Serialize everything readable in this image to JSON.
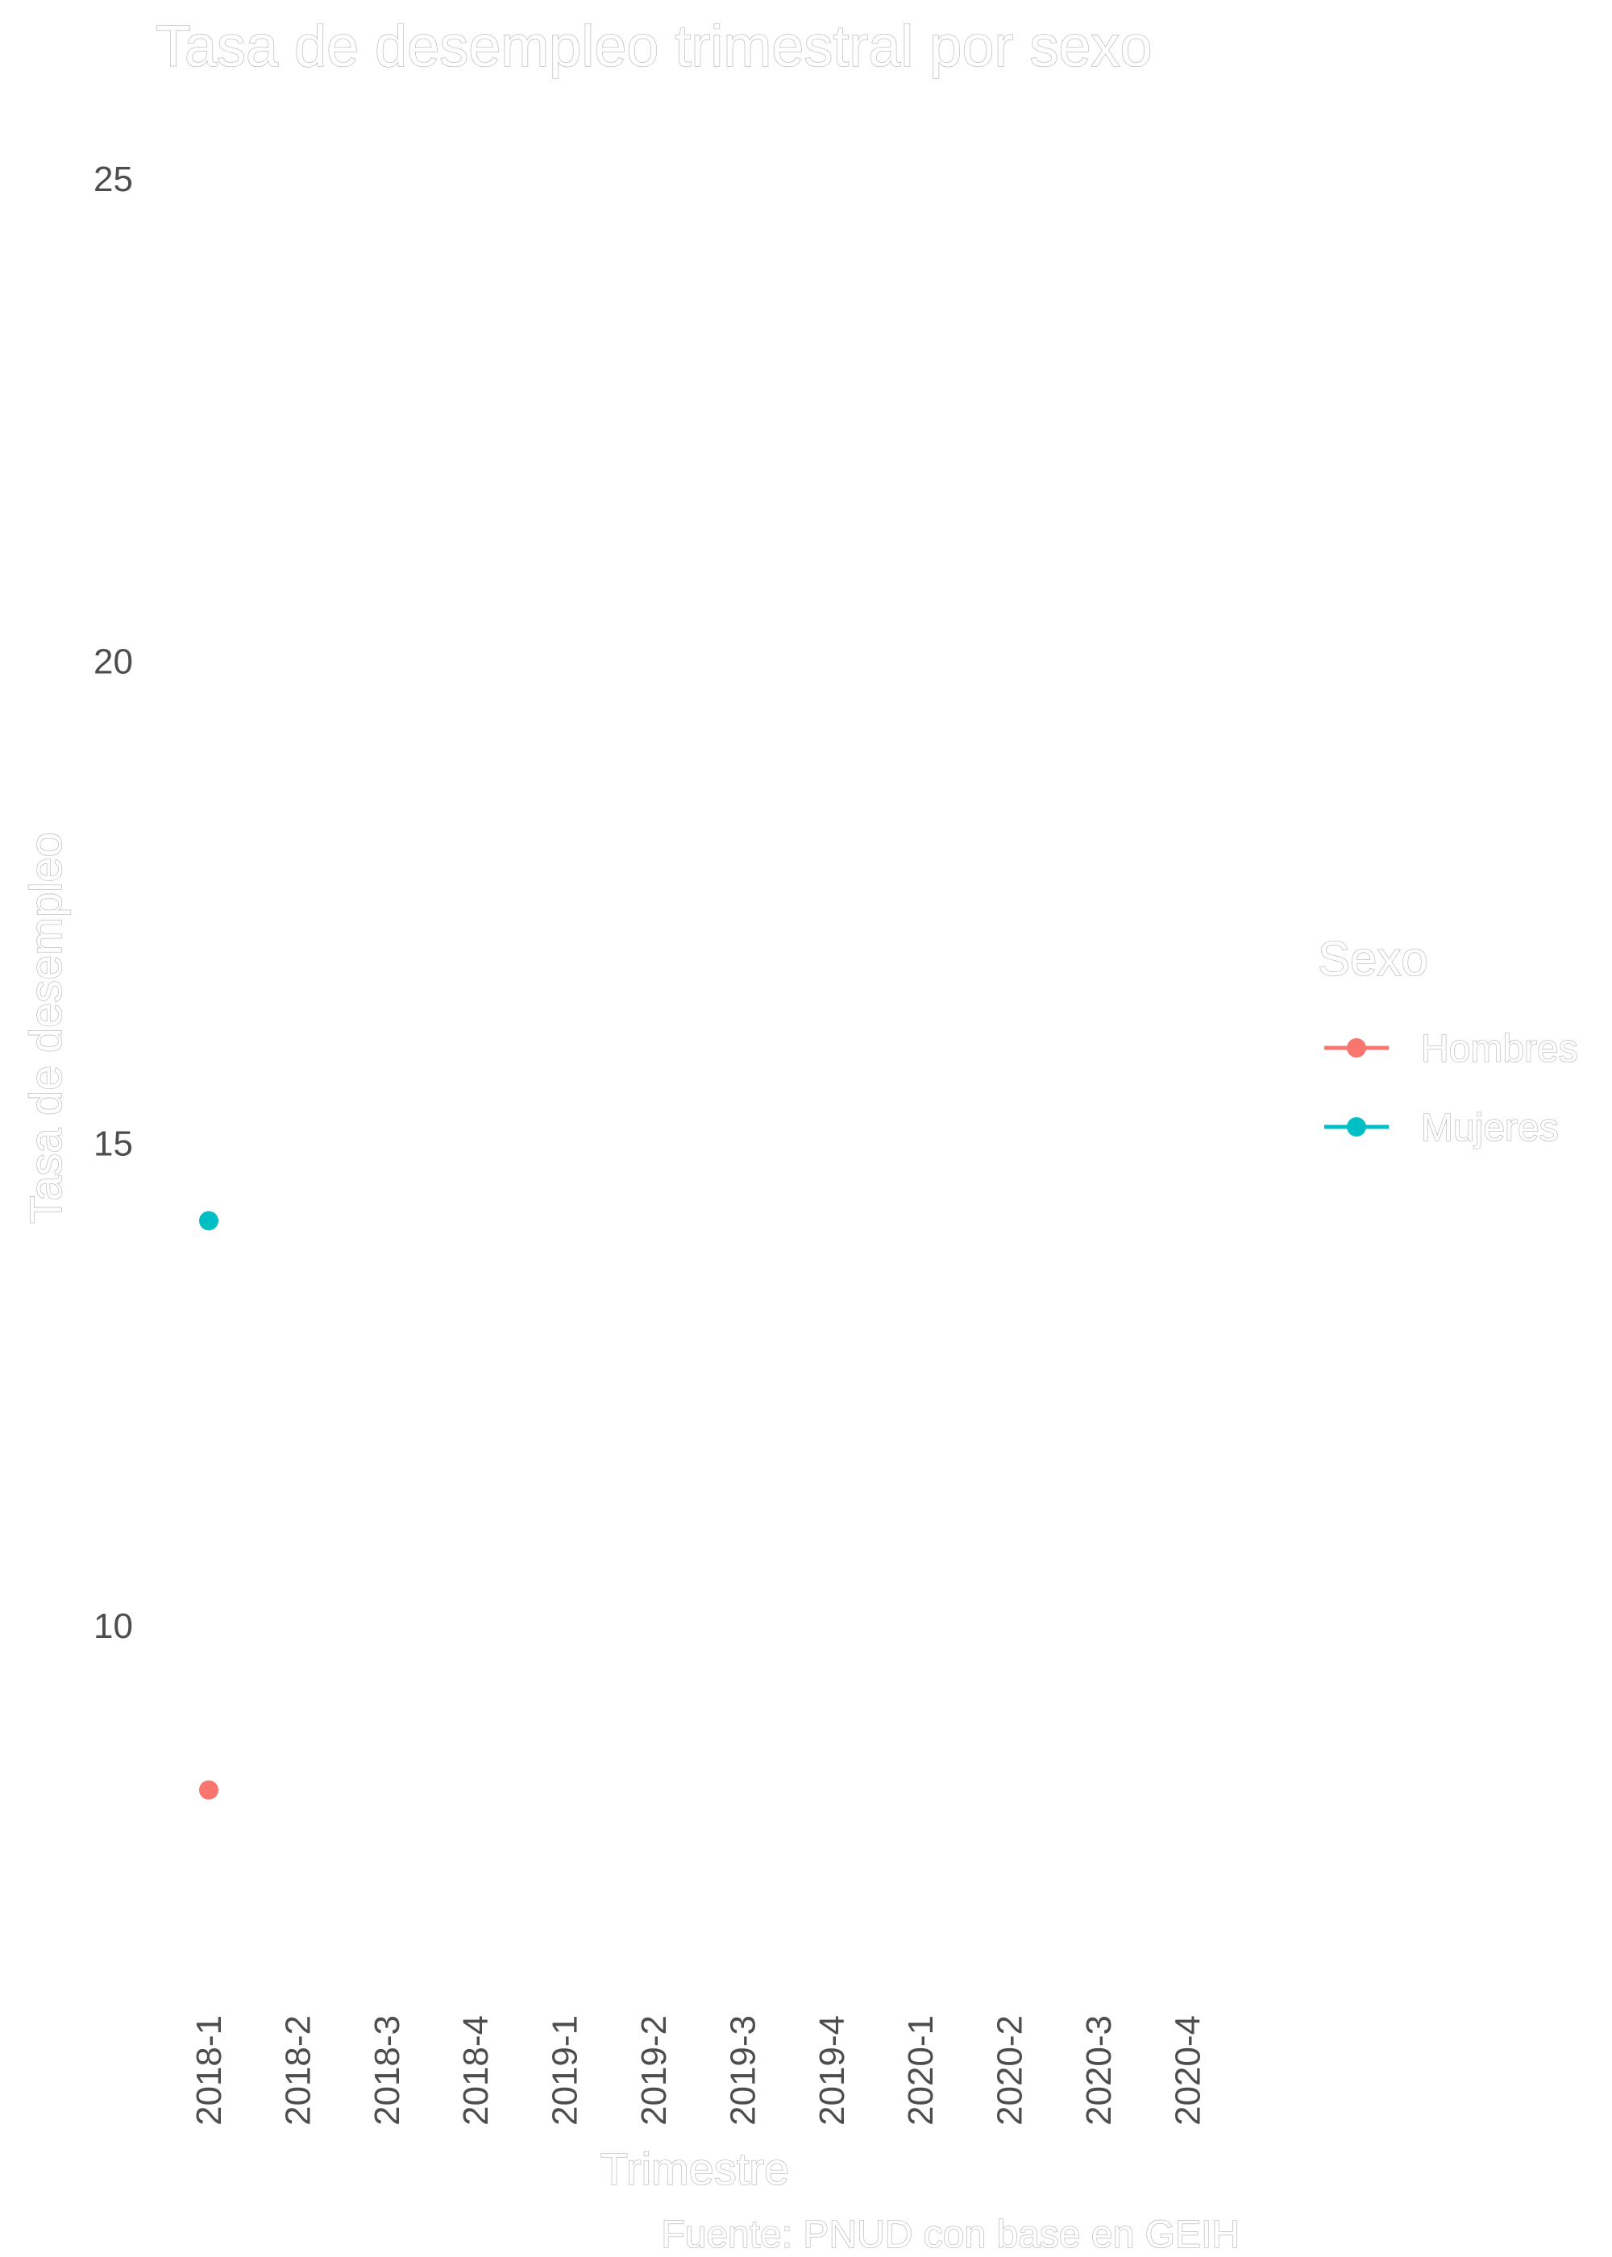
{
  "chart_data": {
    "type": "line",
    "title": "Tasa de desempleo trimestral por sexo",
    "xlabel": "Trimestre",
    "ylabel": "Tasa de desempleo",
    "caption": "Fuente: PNUD con base en GEIH",
    "categories": [
      "2018-1",
      "2018-2",
      "2018-3",
      "2018-4",
      "2019-1",
      "2019-2",
      "2019-3",
      "2019-4",
      "2020-1",
      "2020-2",
      "2020-3",
      "2020-4"
    ],
    "ylim": [
      6.3,
      25.6
    ],
    "y_ticks": [
      10,
      15,
      20,
      25
    ],
    "y_tick_labels": [
      "10",
      "15",
      "20",
      "25"
    ],
    "grid": false,
    "legend": {
      "title": "Sexo",
      "position": "right"
    },
    "series": [
      {
        "name": "Hombres",
        "color": "#F8766D",
        "values": [
          8.3,
          null,
          null,
          null,
          null,
          null,
          null,
          null,
          null,
          null,
          null,
          null
        ]
      },
      {
        "name": "Mujeres",
        "color": "#00BFC4",
        "values": [
          14.2,
          null,
          null,
          null,
          null,
          null,
          null,
          null,
          null,
          null,
          null,
          null
        ]
      }
    ]
  }
}
